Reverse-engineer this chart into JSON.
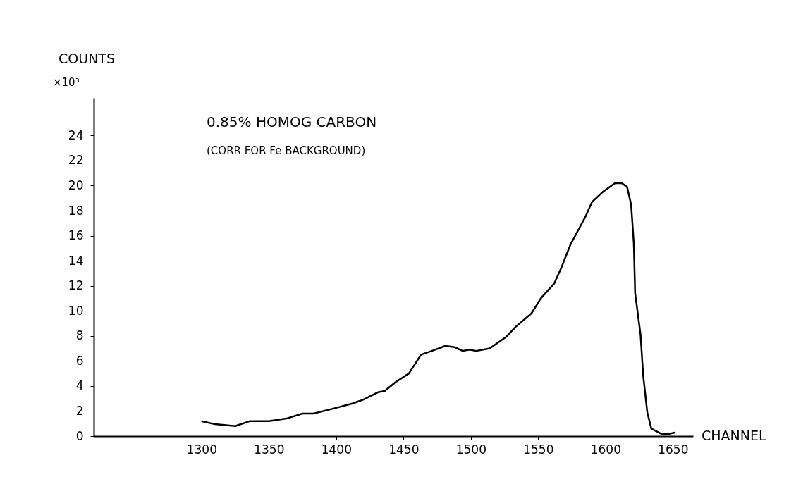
{
  "chart_data": {
    "type": "line",
    "xlabel": "CHANNEL",
    "ylabel": "COUNTS",
    "annotations": [
      "0.85% HOMOG CARBON",
      "(CORR FOR Fe BACKGROUND)",
      "×10³"
    ],
    "x": [
      1300,
      1310,
      1325,
      1336,
      1350,
      1363,
      1375,
      1383,
      1398,
      1412,
      1420,
      1431,
      1436,
      1444,
      1454,
      1463,
      1471,
      1481,
      1488,
      1494,
      1499,
      1504,
      1514,
      1526,
      1533,
      1545,
      1552,
      1562,
      1567,
      1574,
      1585,
      1590,
      1598,
      1607,
      1612,
      1616,
      1619,
      1621,
      1622,
      1626,
      1628,
      1631,
      1634,
      1641,
      1646,
      1652
    ],
    "series": [
      {
        "color": "#000000",
        "values": [
          1.2,
          0.95,
          0.8,
          1.2,
          1.2,
          1.4,
          1.8,
          1.8,
          2.2,
          2.6,
          2.9,
          3.5,
          3.6,
          4.3,
          5.0,
          6.5,
          6.8,
          7.2,
          7.1,
          6.8,
          6.9,
          6.8,
          7.0,
          7.9,
          8.7,
          9.8,
          11.0,
          12.2,
          13.4,
          15.3,
          17.5,
          18.7,
          19.5,
          20.2,
          20.2,
          19.9,
          18.5,
          15.4,
          11.4,
          8.1,
          4.8,
          1.9,
          0.6,
          0.2,
          0.15,
          0.3
        ]
      }
    ],
    "xlim": [
      1220,
      1665
    ],
    "ylim": [
      0,
      27
    ],
    "xticks": [
      1300,
      1350,
      1400,
      1450,
      1500,
      1550,
      1600,
      1650
    ],
    "yticks": [
      0,
      2,
      4,
      6,
      8,
      10,
      12,
      14,
      16,
      18,
      20,
      22,
      24
    ],
    "grid": false,
    "marker": "none",
    "line_style": "solid"
  }
}
